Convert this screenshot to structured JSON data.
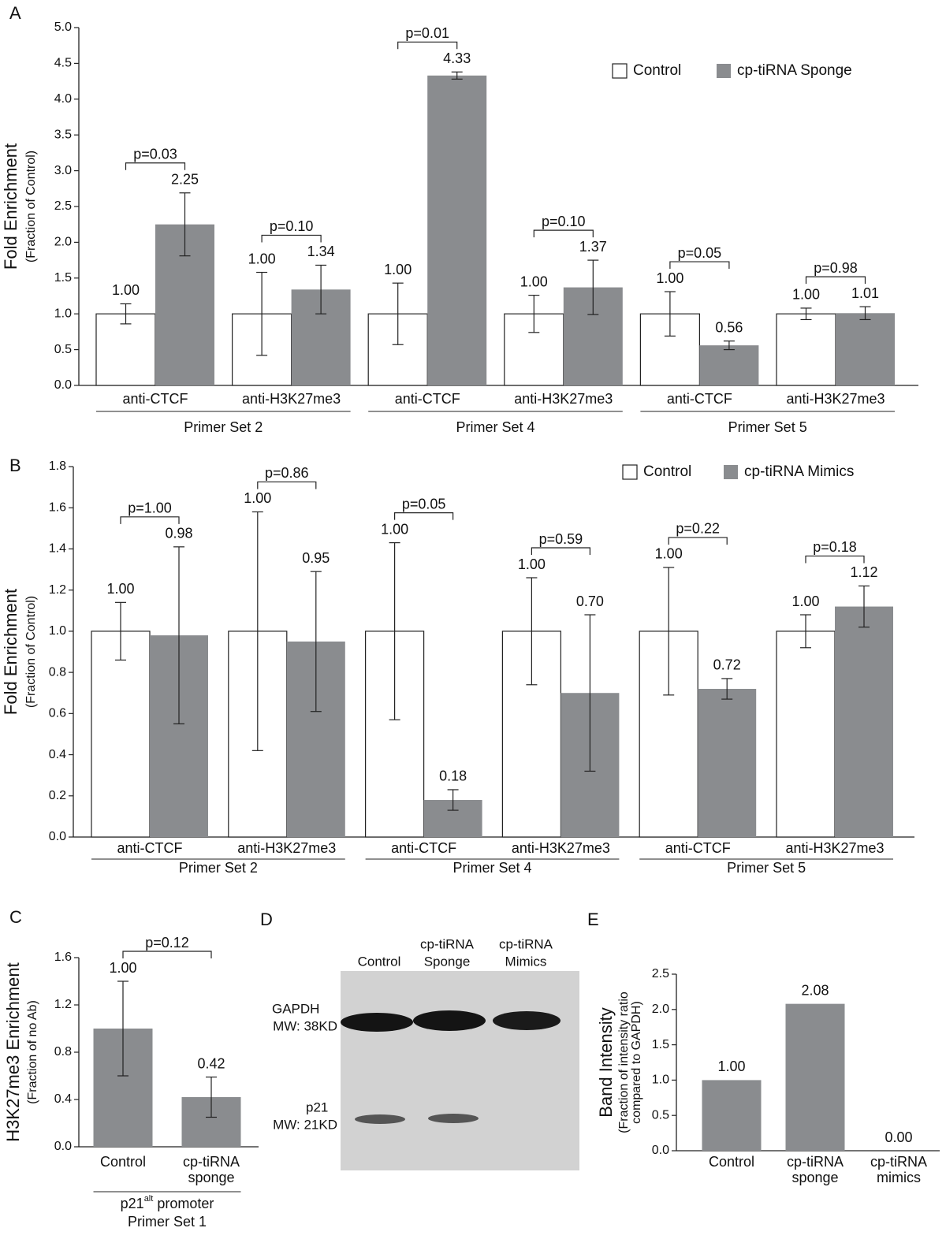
{
  "chart_data": [
    {
      "type": "bar",
      "panel": "A",
      "ylabel": "Fold Enrichment",
      "ylabel_sub": [
        "(Fraction of Control)"
      ],
      "ylim": [
        0,
        5
      ],
      "yticks": [
        {
          "value": 0,
          "label": "0.0"
        },
        0.5,
        {
          "value": 1,
          "label": "1.0"
        },
        1.5,
        {
          "value": 2,
          "label": "2.0"
        },
        2.5,
        {
          "value": 3,
          "label": "3.0"
        },
        3.5,
        {
          "value": 4,
          "label": "4.0"
        },
        4.5,
        {
          "value": 5,
          "label": "5.0"
        }
      ],
      "categories": [
        "anti-CTCF",
        "anti-H3K27me3",
        "anti-CTCF",
        "anti-H3K27me3",
        "anti-CTCF",
        "anti-H3K27me3"
      ],
      "groups": [
        "Primer Set 2",
        "Primer Set 4",
        "Primer Set 5"
      ],
      "series": [
        {
          "name": "Control",
          "color": "#ffffff",
          "values": [
            1,
            1,
            1,
            1,
            1,
            1
          ],
          "value_labels": [
            "1.00",
            "1.00",
            "1.00",
            "1.00",
            "1.00",
            "1.00"
          ],
          "errors": [
            0.14,
            0.58,
            0.43,
            0.26,
            0.31,
            0.08
          ]
        },
        {
          "name": "cp-tiRNA Sponge",
          "color": "#8a8c8f",
          "values": [
            2.25,
            1.34,
            4.33,
            1.37,
            0.56,
            1.01
          ],
          "value_labels": [
            "2.25",
            "1.34",
            "4.33",
            "1.37",
            "0.56",
            "1.01"
          ],
          "errors": [
            0.44,
            0.34,
            0.05,
            0.38,
            0.06,
            0.09
          ]
        }
      ],
      "pvalues": [
        "p=0.03",
        "p=0.10",
        "p=0.01",
        "p=0.10",
        "p=0.05",
        "p=0.98"
      ],
      "legend": "upper right"
    },
    {
      "type": "bar",
      "panel": "B",
      "ylabel": "Fold Enrichment",
      "ylabel_sub": [
        "(Fraction of Control)"
      ],
      "ylim": [
        0,
        1.8
      ],
      "yticks": [
        {
          "value": 0,
          "label": "0.0"
        },
        0.2,
        0.4,
        0.6,
        0.8,
        {
          "value": 1,
          "label": "1.0"
        },
        1.2,
        1.4,
        1.6,
        1.8
      ],
      "categories": [
        "anti-CTCF",
        "anti-H3K27me3",
        "anti-CTCF",
        "anti-H3K27me3",
        "anti-CTCF",
        "anti-H3K27me3"
      ],
      "groups": [
        "Primer Set 2",
        "Primer Set 4",
        "Primer Set 5"
      ],
      "series": [
        {
          "name": "Control",
          "color": "#ffffff",
          "values": [
            1,
            1,
            1,
            1,
            1,
            1
          ],
          "value_labels": [
            "1.00",
            "1.00",
            "1.00",
            "1.00",
            "1.00",
            "1.00"
          ],
          "errors": [
            0.14,
            0.58,
            0.43,
            0.26,
            0.31,
            0.08
          ]
        },
        {
          "name": "cp-tiRNA Mimics",
          "color": "#8a8c8f",
          "values": [
            0.98,
            0.95,
            0.18,
            0.7,
            0.72,
            1.12
          ],
          "value_labels": [
            "0.98",
            "0.95",
            "0.18",
            "0.70",
            "0.72",
            "1.12"
          ],
          "errors": [
            0.43,
            0.34,
            0.05,
            0.38,
            0.05,
            0.1
          ]
        }
      ],
      "pvalues": [
        "p=1.00",
        "p=0.86",
        "p=0.05",
        "p=0.59",
        "p=0.22",
        "p=0.18"
      ],
      "legend": "upper right"
    },
    {
      "type": "bar",
      "panel": "C",
      "ylabel": "H3K27me3 Enrichment",
      "ylabel_sub": [
        "(Fraction of no Ab)"
      ],
      "ylim": [
        0,
        1.6
      ],
      "yticks": [
        {
          "value": 0,
          "label": "0.0"
        },
        0.4,
        0.8,
        1.2,
        1.6
      ],
      "categories": [
        "Control",
        [
          "cp-tiRNA",
          "sponge"
        ]
      ],
      "values": [
        1,
        0.42
      ],
      "value_labels": [
        "1.00",
        "0.42"
      ],
      "errors": [
        0.4,
        0.17
      ],
      "color": "#8a8c8f",
      "pvalue": "p=0.12",
      "xlabel": {
        "text": "p21",
        "sup": "alt",
        "rest": "promoter"
      },
      "groups": [
        "Primer Set 1"
      ]
    },
    {
      "type": "bar",
      "panel": "E",
      "ylabel": "Band Intensity",
      "ylabel_sub": [
        "(Fraction of intensity ratio",
        "compared to GAPDH)"
      ],
      "ylim": [
        0,
        2.5
      ],
      "yticks": [
        {
          "value": 0,
          "label": "0.0"
        },
        0.5,
        {
          "value": 1,
          "label": "1.0"
        },
        1.5,
        {
          "value": 2,
          "label": "2.0"
        },
        2.5
      ],
      "categories": [
        "Control",
        [
          "cp-tiRNA",
          "sponge"
        ],
        [
          "cp-tiRNA",
          "mimics"
        ]
      ],
      "values": [
        1,
        2.08,
        0
      ],
      "value_labels": [
        "1.00",
        "2.08",
        "0.00"
      ],
      "color": "#8a8c8f"
    }
  ],
  "blot": {
    "panel": "D",
    "lanes": [
      "Control",
      [
        "cp-tiRNA",
        "Sponge"
      ],
      [
        "cp-tiRNA",
        "Mimics"
      ]
    ],
    "bands": [
      [
        "GAPDH",
        "MW: 38KD"
      ],
      [
        "p21",
        "MW: 21KD"
      ]
    ]
  }
}
